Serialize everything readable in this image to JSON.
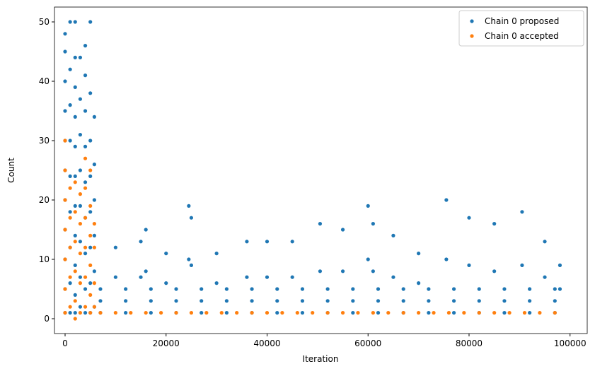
{
  "chart_data": {
    "type": "scatter",
    "xlabel": "Iteration",
    "ylabel": "Count",
    "xlim": [
      -2100,
      103400
    ],
    "ylim": [
      -2.5,
      52.5
    ],
    "xticks": [
      0,
      20000,
      40000,
      60000,
      80000,
      100000
    ],
    "yticks": [
      0,
      10,
      20,
      30,
      40,
      50
    ],
    "legend": "upper right",
    "series": [
      {
        "name": "Chain 0 proposed",
        "color": "#1f77b4",
        "x": [
          0,
          0,
          0,
          0,
          0,
          0,
          0,
          0,
          0,
          0,
          0,
          1000,
          1000,
          1000,
          1000,
          1000,
          1000,
          1000,
          1000,
          1000,
          2000,
          2000,
          2000,
          2000,
          2000,
          2000,
          2000,
          2000,
          2000,
          2000,
          2000,
          3000,
          3000,
          3000,
          3000,
          3000,
          3000,
          3000,
          3000,
          4000,
          4000,
          4000,
          4000,
          4000,
          4000,
          4000,
          4000,
          4000,
          5000,
          5000,
          5000,
          5000,
          5000,
          5000,
          5000,
          5000,
          5800,
          5800,
          5800,
          5800,
          5800,
          5800,
          7000,
          7000,
          7000,
          12000,
          12000,
          12000,
          17000,
          17000,
          17000,
          22000,
          22000,
          22000,
          27000,
          27000,
          27000,
          32000,
          32000,
          32000,
          37000,
          37000,
          37000,
          42000,
          42000,
          42000,
          47000,
          47000,
          47000,
          52000,
          52000,
          52000,
          57000,
          57000,
          57000,
          62000,
          62000,
          62000,
          67000,
          67000,
          67000,
          72000,
          72000,
          72000,
          77000,
          77000,
          77000,
          82000,
          82000,
          82000,
          87000,
          87000,
          87000,
          92000,
          92000,
          92000,
          97000,
          97000,
          97000,
          10000,
          15000,
          16000,
          20000,
          24500,
          25000,
          30000,
          36000,
          40000,
          45000,
          50500,
          55000,
          60000,
          61000,
          65000,
          70000,
          75500,
          80000,
          85000,
          90500,
          95000,
          98000,
          10000,
          15000,
          16000,
          20000,
          24500,
          25000,
          30000,
          36000,
          40000,
          45000,
          50500,
          55000,
          60000,
          61000,
          65000,
          70000,
          75500,
          80000,
          85000,
          90500,
          95000,
          98000
        ],
        "values": [
          1,
          5,
          10,
          15,
          20,
          25,
          30,
          35,
          40,
          45,
          48,
          1,
          6,
          12,
          18,
          24,
          30,
          36,
          42,
          50,
          1,
          4,
          9,
          14,
          19,
          24,
          29,
          34,
          39,
          44,
          50,
          2,
          7,
          13,
          19,
          25,
          31,
          37,
          44,
          1,
          5,
          11,
          17,
          23,
          29,
          35,
          41,
          46,
          1,
          6,
          12,
          18,
          24,
          30,
          38,
          50,
          2,
          8,
          14,
          20,
          26,
          34,
          1,
          3,
          5,
          1,
          3,
          5,
          1,
          3,
          5,
          1,
          3,
          5,
          1,
          3,
          5,
          1,
          3,
          5,
          1,
          3,
          5,
          1,
          3,
          5,
          1,
          3,
          5,
          1,
          3,
          5,
          1,
          3,
          5,
          1,
          3,
          5,
          1,
          3,
          5,
          1,
          3,
          5,
          1,
          3,
          5,
          1,
          3,
          5,
          1,
          3,
          5,
          1,
          3,
          5,
          1,
          3,
          5,
          12,
          13,
          15,
          11,
          19,
          17,
          11,
          13,
          13,
          13,
          16,
          15,
          19,
          16,
          14,
          11,
          20,
          17,
          16,
          18,
          13,
          9,
          7,
          7,
          8,
          6,
          10,
          9,
          6,
          7,
          7,
          7,
          8,
          8,
          10,
          8,
          7,
          6,
          10,
          9,
          8,
          9,
          7,
          5
        ]
      },
      {
        "name": "Chain 0 accepted",
        "color": "#ff7f0e",
        "x": [
          0,
          0,
          0,
          0,
          0,
          0,
          0,
          1000,
          1000,
          1000,
          1000,
          1000,
          2000,
          2000,
          2000,
          2000,
          2000,
          2000,
          3000,
          3000,
          3000,
          3000,
          3000,
          4000,
          4000,
          4000,
          4000,
          4000,
          4000,
          5000,
          5000,
          5000,
          5000,
          5000,
          5000,
          5800,
          5800,
          5800,
          5800,
          7000,
          10000,
          13000,
          16000,
          19000,
          22000,
          25000,
          28000,
          31000,
          34000,
          37000,
          40000,
          43000,
          46000,
          49000,
          52000,
          55000,
          58000,
          61000,
          64000,
          67000,
          70000,
          73000,
          76000,
          79000,
          82000,
          85000,
          88000,
          91000,
          94000,
          97000
        ],
        "values": [
          1,
          5,
          10,
          15,
          20,
          25,
          30,
          2,
          7,
          12,
          17,
          22,
          0,
          3,
          8,
          13,
          18,
          23,
          1,
          6,
          11,
          16,
          21,
          2,
          7,
          12,
          17,
          22,
          27,
          1,
          4,
          9,
          14,
          19,
          25,
          2,
          6,
          12,
          16,
          1,
          1,
          1,
          1,
          1,
          1,
          1,
          1,
          1,
          1,
          1,
          1,
          1,
          1,
          1,
          1,
          1,
          1,
          1,
          1,
          1,
          1,
          1,
          1,
          1,
          1,
          1,
          1,
          1,
          1,
          1
        ]
      }
    ]
  }
}
